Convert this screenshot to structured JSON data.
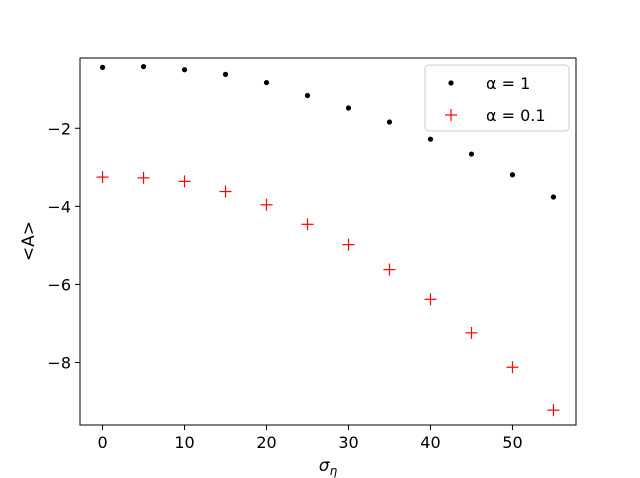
{
  "chart_data": {
    "type": "scatter",
    "title": "",
    "xlabel": "σ",
    "xlabel_subscript": "η",
    "ylabel": "<A>",
    "xlim": [
      -2.75,
      57.75
    ],
    "ylim": [
      -9.6,
      -0.2
    ],
    "x_ticks": [
      0,
      10,
      20,
      30,
      40,
      50
    ],
    "x_tick_labels": [
      "0",
      "10",
      "20",
      "30",
      "40",
      "50"
    ],
    "y_ticks": [
      -2,
      -4,
      -6,
      -8
    ],
    "y_tick_labels": [
      "−2",
      "−4",
      "−6",
      "−8"
    ],
    "grid": false,
    "legend_position": "top-right",
    "series": [
      {
        "name": "α = 1",
        "marker": "dot",
        "color": "#000000",
        "x": [
          0,
          5,
          10,
          15,
          20,
          25,
          30,
          35,
          40,
          45,
          50,
          55
        ],
        "y": [
          -0.44,
          -0.42,
          -0.5,
          -0.62,
          -0.83,
          -1.16,
          -1.48,
          -1.84,
          -2.28,
          -2.66,
          -3.19,
          -3.76
        ]
      },
      {
        "name": "α = 0.1",
        "marker": "plus",
        "color": "#ff0000",
        "x": [
          0,
          5,
          10,
          15,
          20,
          25,
          30,
          35,
          40,
          45,
          50,
          55
        ],
        "y": [
          -3.25,
          -3.27,
          -3.36,
          -3.62,
          -3.96,
          -4.46,
          -4.98,
          -5.62,
          -6.38,
          -7.24,
          -8.12,
          -9.22
        ]
      }
    ]
  }
}
